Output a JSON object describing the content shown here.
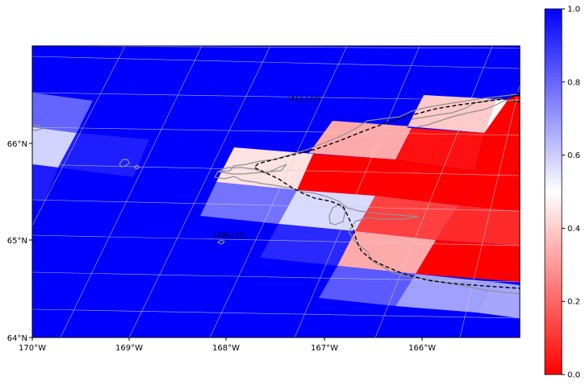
{
  "map": {
    "x_ticks": [
      "170°W",
      "169°W",
      "168°W",
      "167°W",
      "166°W"
    ],
    "y_ticks": [
      "64°N",
      "65°N",
      "66°N"
    ],
    "annotations": [
      "(412,172)",
      "(408,172)"
    ],
    "colors": {
      "low": "#ff0000",
      "mid": "#ffffff",
      "high": "#0000ff",
      "coastline": "#909090",
      "grid": "#d0d0d0",
      "boundary": "#000000"
    }
  },
  "colorbar": {
    "ticks": [
      "0.0",
      "0.2",
      "0.4",
      "0.6",
      "0.8",
      "1.0"
    ],
    "range": [
      0,
      1
    ],
    "colormap": "bwr_r"
  }
}
